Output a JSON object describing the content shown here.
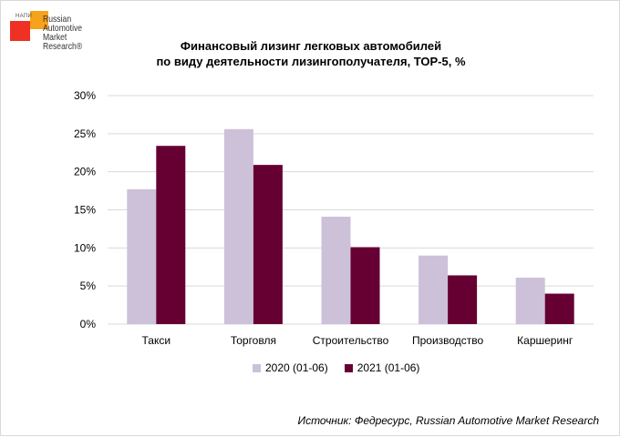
{
  "logo": {
    "small_text": "НАПИ",
    "lines": [
      "Russian",
      "Automotive",
      "Market",
      "Research®"
    ]
  },
  "title_line1": "Финансовый лизинг легковых автомобилей",
  "title_line2": "по виду деятельности лизингополучателя, ТОР-5, %",
  "source": "Источник: Федресурс, Russian Automotive Market Research",
  "colors": {
    "series_2020": "#ccc1d9",
    "series_2021": "#660033",
    "grid": "#d9d9d9"
  },
  "chart_data": {
    "type": "bar",
    "title": "Финансовый лизинг легковых автомобилей по виду деятельности лизингополучателя, ТОР-5, %",
    "categories": [
      "Такси",
      "Торговля",
      "Строительство",
      "Производство",
      "Каршеринг"
    ],
    "series": [
      {
        "name": "2020 (01-06)",
        "values": [
          17.7,
          25.6,
          14.1,
          9.0,
          6.1
        ]
      },
      {
        "name": "2021 (01-06)",
        "values": [
          23.4,
          20.9,
          10.1,
          6.4,
          4.0
        ]
      }
    ],
    "ylim": [
      0,
      30
    ],
    "yticks": [
      "0%",
      "5%",
      "10%",
      "15%",
      "20%",
      "25%",
      "30%"
    ],
    "grid": true,
    "legend": "bottom"
  }
}
